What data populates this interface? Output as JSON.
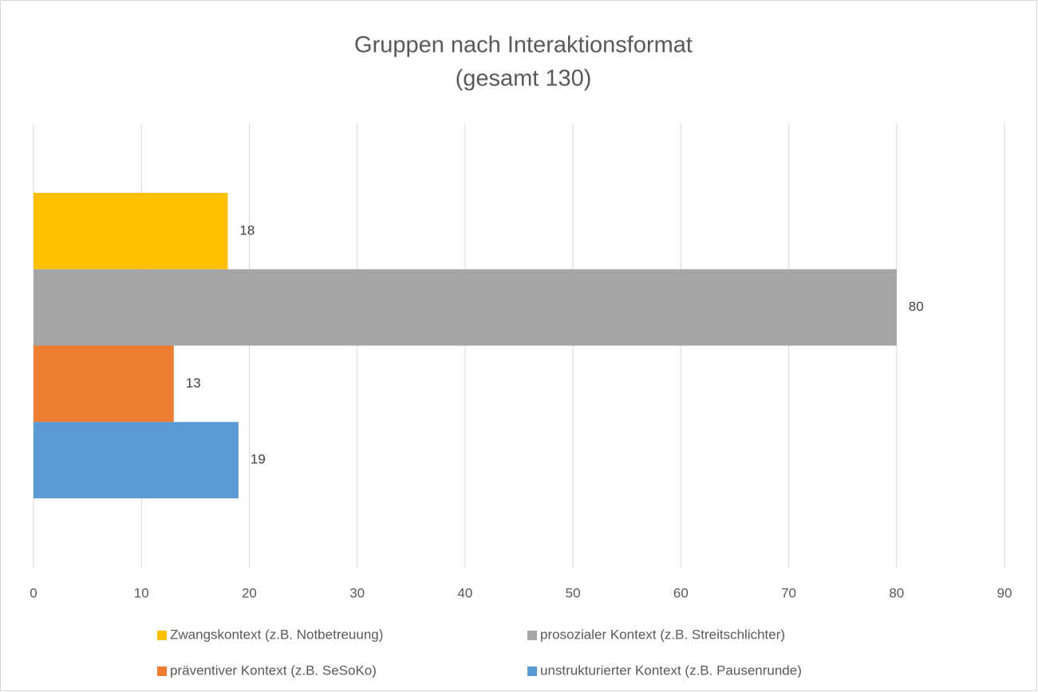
{
  "chart_data": {
    "type": "hbar",
    "title": "Gruppen nach Interaktionsformat",
    "subtitle": "(gesamt 130)",
    "categories": [
      null
    ],
    "series": [
      {
        "name": "Zwangskontext (z.B. Notbetreuung)",
        "color": "#FFC000",
        "values": [
          18
        ]
      },
      {
        "name": "prosozialer Kontext (z.B. Streitschlichter)",
        "color": "#A5A5A5",
        "values": [
          80
        ]
      },
      {
        "name": "präventiver Kontext (z.B. SeSoKo)",
        "color": "#ED7D31",
        "values": [
          13
        ]
      },
      {
        "name": "unstrukturierter Kontext (z.B. Pausenrunde)",
        "color": "#5B9BD5",
        "values": [
          19
        ]
      }
    ],
    "xlim": [
      0,
      90
    ],
    "xticks": [
      0,
      10,
      20,
      30,
      40,
      50,
      60,
      70,
      80,
      90
    ],
    "grid": true,
    "legend": "bottom"
  }
}
